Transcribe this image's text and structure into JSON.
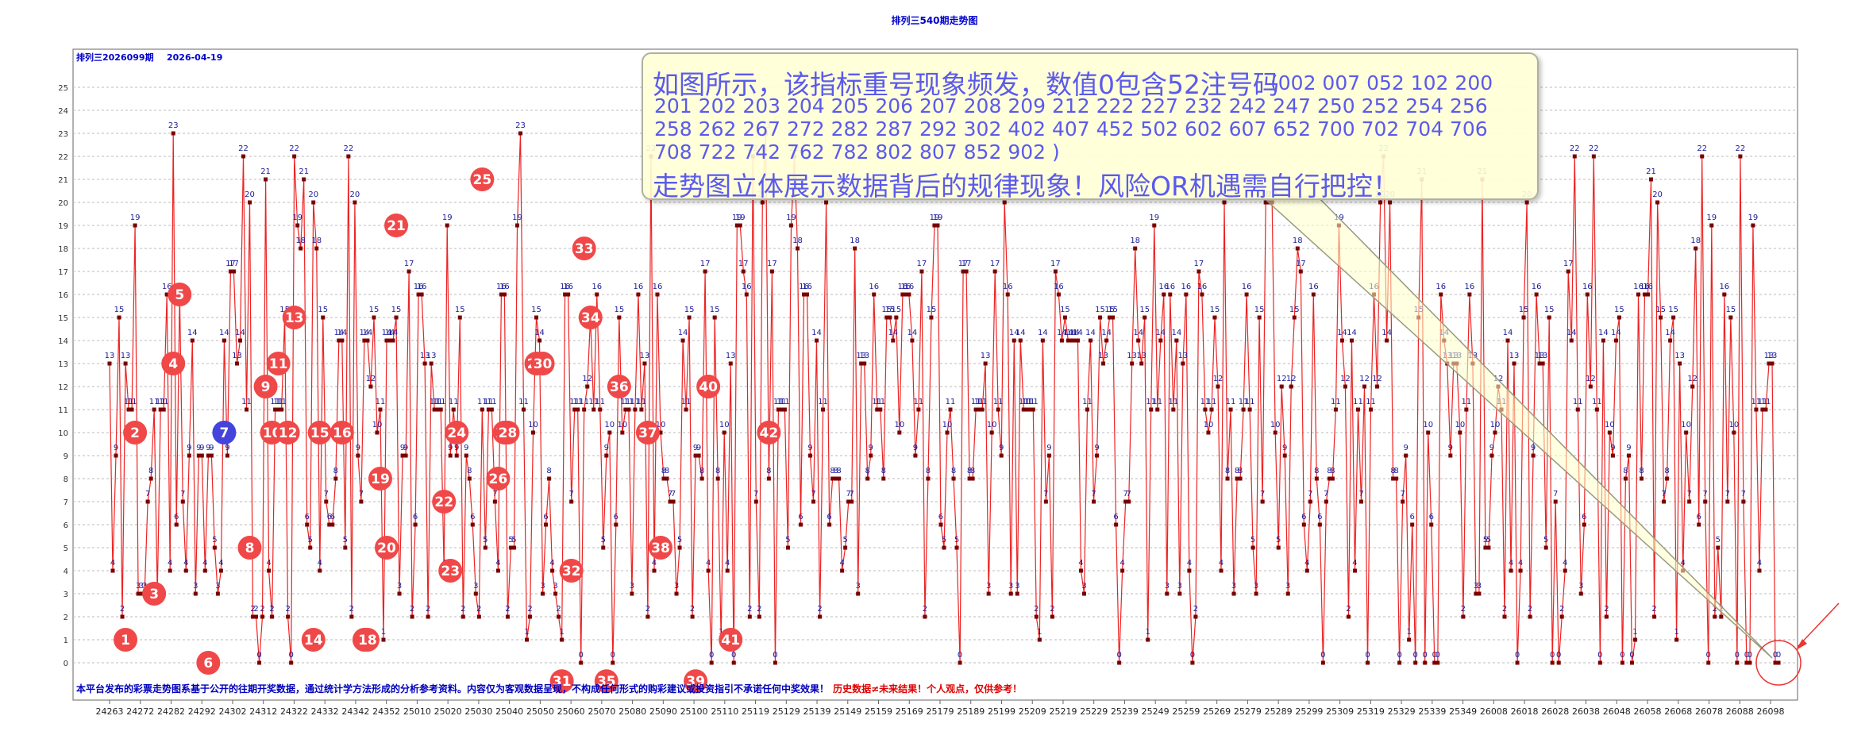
{
  "chart_data": {
    "type": "line",
    "title": "排列三540期走势图",
    "subtitle": "排列三2026099期",
    "date": "2026-04-19",
    "ylim": [
      0,
      25
    ],
    "y_ticks": [
      "0",
      "1",
      "2",
      "3",
      "4",
      "5",
      "6",
      "7",
      "8",
      "9",
      "10",
      "11",
      "12",
      "13",
      "14",
      "15",
      "16",
      "17",
      "18",
      "19",
      "20",
      "21",
      "22",
      "23",
      "24",
      "25"
    ],
    "x_ticks": [
      "24263",
      "24272",
      "24282",
      "24292",
      "24302",
      "24312",
      "24322",
      "24332",
      "24342",
      "24352",
      "25010",
      "25020",
      "25030",
      "25040",
      "25050",
      "25060",
      "25070",
      "25080",
      "25090",
      "25100",
      "25110",
      "25119",
      "25129",
      "25139",
      "25149",
      "25159",
      "25169",
      "25179",
      "25189",
      "25199",
      "25209",
      "25219",
      "25229",
      "25239",
      "25249",
      "25259",
      "25269",
      "25279",
      "25289",
      "25299",
      "25309",
      "25319",
      "25329",
      "25339",
      "25349",
      "26008",
      "26018",
      "26028",
      "26038",
      "26048",
      "26058",
      "26068",
      "26078",
      "26088",
      "26098"
    ],
    "grid": true,
    "series": [
      {
        "color": "#ee2222",
        "values": [
          13,
          4,
          9,
          15,
          2,
          13,
          11,
          11,
          19,
          3,
          3,
          3,
          7,
          8,
          11,
          3,
          11,
          11,
          16,
          4,
          23,
          6,
          16,
          7,
          4,
          9,
          14,
          3,
          9,
          9,
          4,
          9,
          9,
          5,
          3,
          4,
          14,
          9,
          17,
          17,
          13,
          14,
          22,
          11,
          20,
          2,
          2,
          0,
          2,
          21,
          4,
          2,
          11,
          11,
          11,
          15,
          2,
          0,
          22,
          19,
          18,
          21,
          6,
          5,
          20,
          18,
          4,
          15,
          7,
          6,
          6,
          8,
          14,
          14,
          5,
          22,
          2,
          20,
          9,
          7,
          14,
          14,
          12,
          15,
          10,
          11,
          1,
          14,
          14,
          14,
          15,
          3,
          9,
          9,
          17,
          2,
          6,
          16,
          16,
          13,
          2,
          13,
          11,
          11,
          11,
          4,
          19,
          9,
          11,
          9,
          15,
          2,
          9,
          8,
          6,
          3,
          2,
          11,
          5,
          11,
          11,
          7,
          4,
          16,
          16,
          2,
          5,
          5,
          19,
          23,
          11,
          1,
          2,
          10,
          15,
          14,
          3,
          6,
          8,
          4,
          3,
          2,
          1,
          16,
          16,
          7,
          11,
          11,
          0,
          11,
          12,
          15,
          11,
          16,
          11,
          5,
          9,
          10,
          0,
          6,
          15,
          10,
          11,
          11,
          3,
          11,
          16,
          11,
          13,
          2,
          22,
          4,
          16,
          10,
          8,
          8,
          7,
          7,
          3,
          5,
          14,
          11,
          15,
          2,
          9,
          9,
          8,
          17,
          4,
          0,
          15,
          8,
          1,
          10,
          4,
          13,
          0,
          19,
          19,
          17,
          16,
          2,
          22,
          7,
          2,
          20,
          23,
          8,
          17,
          0,
          11,
          11,
          11,
          5,
          19,
          22,
          18,
          6,
          16,
          16,
          9,
          7,
          14,
          2,
          11,
          20,
          6,
          8,
          8,
          8,
          4,
          5,
          7,
          7,
          18,
          3,
          13,
          13,
          8,
          9,
          16,
          11,
          11,
          8,
          15,
          15,
          14,
          15,
          10,
          16,
          16,
          16,
          14,
          9,
          11,
          17,
          2,
          8,
          15,
          19,
          19,
          6,
          5,
          10,
          11,
          8,
          5,
          0,
          17,
          17,
          8,
          8,
          11,
          11,
          11,
          13,
          3,
          10,
          17,
          11,
          9,
          20,
          16,
          3,
          14,
          3,
          14,
          11,
          11,
          11,
          11,
          2,
          1,
          14,
          7,
          9,
          2,
          17,
          16,
          14,
          15,
          14,
          14,
          14,
          14,
          4,
          3,
          11,
          14,
          7,
          9,
          15,
          13,
          14,
          15,
          15,
          6,
          0,
          4,
          7,
          7,
          13,
          18,
          14,
          13,
          15,
          1,
          11,
          19,
          11,
          14,
          16,
          3,
          16,
          11,
          14,
          3,
          13,
          16,
          4,
          0,
          2,
          17,
          16,
          11,
          10,
          11,
          15,
          12,
          4,
          20,
          8,
          11,
          3,
          8,
          8,
          11,
          16,
          11,
          5,
          3,
          15,
          7,
          20,
          20,
          20,
          10,
          5,
          12,
          9,
          3,
          12,
          15,
          18,
          17,
          6,
          4,
          7,
          16,
          8,
          6,
          0,
          7,
          8,
          8,
          11,
          19,
          14,
          12,
          2,
          14,
          4,
          11,
          7,
          12,
          0,
          11,
          16,
          12,
          20,
          22,
          14,
          20,
          8,
          8,
          0,
          7,
          9,
          1,
          6,
          0,
          15,
          21,
          0,
          10,
          6,
          0,
          0,
          16,
          14,
          13,
          9,
          13,
          13,
          10,
          2,
          11,
          16,
          13,
          3,
          3,
          21,
          5,
          5,
          9,
          10,
          12,
          11,
          2,
          14,
          4,
          13,
          0,
          4,
          15,
          20,
          2,
          9,
          16,
          13,
          13,
          5,
          15,
          0,
          7,
          0,
          2,
          4,
          17,
          14,
          22,
          11,
          3,
          6,
          16,
          12,
          22,
          11,
          0,
          14,
          2,
          10,
          9,
          14,
          15,
          0,
          8,
          9,
          0,
          1,
          16,
          8,
          16,
          16,
          21,
          2,
          20,
          15,
          7,
          8,
          14,
          15,
          1,
          13,
          4,
          10,
          7,
          12,
          18,
          6,
          22,
          7,
          0,
          19,
          2,
          5,
          2,
          16,
          7,
          15,
          10,
          0,
          22,
          7,
          0,
          0,
          19,
          11,
          4,
          11,
          11,
          13,
          13,
          0,
          0
        ]
      }
    ],
    "circle_labels": [
      {
        "n": "1",
        "i": 5,
        "y": 1
      },
      {
        "n": "2",
        "i": 8,
        "y": 10
      },
      {
        "n": "3",
        "i": 14,
        "y": 3
      },
      {
        "n": "4",
        "i": 20,
        "y": 13
      },
      {
        "n": "5",
        "i": 22,
        "y": 16
      },
      {
        "n": "6",
        "i": 31,
        "y": 0
      },
      {
        "n": "7",
        "i": 36,
        "y": 10,
        "color": "#4444dd"
      },
      {
        "n": "8",
        "i": 44,
        "y": 5
      },
      {
        "n": "9",
        "i": 49,
        "y": 12
      },
      {
        "n": "10",
        "i": 51,
        "y": 10
      },
      {
        "n": "11",
        "i": 53,
        "y": 13
      },
      {
        "n": "12",
        "i": 56,
        "y": 10
      },
      {
        "n": "13",
        "i": 58,
        "y": 15
      },
      {
        "n": "14",
        "i": 64,
        "y": 1
      },
      {
        "n": "15",
        "i": 66,
        "y": 10
      },
      {
        "n": "16",
        "i": 73,
        "y": 10
      },
      {
        "n": "17",
        "i": 80,
        "y": 1
      },
      {
        "n": "18",
        "i": 81,
        "y": 1
      },
      {
        "n": "19",
        "i": 85,
        "y": 8
      },
      {
        "n": "20",
        "i": 87,
        "y": 5
      },
      {
        "n": "21",
        "i": 90,
        "y": 19
      },
      {
        "n": "22",
        "i": 105,
        "y": 7
      },
      {
        "n": "23",
        "i": 107,
        "y": 4
      },
      {
        "n": "24",
        "i": 109,
        "y": 10
      },
      {
        "n": "25",
        "i": 117,
        "y": 21
      },
      {
        "n": "26",
        "i": 122,
        "y": 8
      },
      {
        "n": "27",
        "i": 124,
        "y": 10
      },
      {
        "n": "28",
        "i": 125,
        "y": 10
      },
      {
        "n": "29",
        "i": 134,
        "y": 13
      },
      {
        "n": "30",
        "i": 136,
        "y": 13
      },
      {
        "n": "31",
        "i": 142,
        "y": -0.8
      },
      {
        "n": "32",
        "i": 145,
        "y": 4
      },
      {
        "n": "33",
        "i": 149,
        "y": 18
      },
      {
        "n": "34",
        "i": 151,
        "y": 15
      },
      {
        "n": "35",
        "i": 156,
        "y": -0.8
      },
      {
        "n": "36",
        "i": 160,
        "y": 12
      },
      {
        "n": "37",
        "i": 169,
        "y": 10
      },
      {
        "n": "38",
        "i": 173,
        "y": 5
      },
      {
        "n": "39",
        "i": 184,
        "y": -0.8
      },
      {
        "n": "40",
        "i": 188,
        "y": 12
      },
      {
        "n": "41",
        "i": 195,
        "y": 1
      },
      {
        "n": "42",
        "i": 207,
        "y": 10
      }
    ]
  },
  "note": {
    "line1": "如图所示，该指标重号现象频发，数值0包含52注号码",
    "codes": "(002  007  052  102  200  201  202  203  204  205  206  207  208  209  212  222  227  232  242  247  250  252  254  256  258  262  267  272  282  287  292  302  402  407  452  502  602  607  652  700  702  704  706  708  722  742  762  782  802  807  852  902  )",
    "line2": "走势图立体展示数据背后的规律现象！风险OR机遇需自行把控！"
  },
  "footer": {
    "part1": "本平台发布的彩票走势图系基于公开的往期开奖数据，通过统计学方法形成的分析参考资料。内容仅为客观数据呈现，不构成任何形式的购彩建议或投资指引不承诺任何中奖效果！",
    "part2": "历史数据≠未来结果！个人观点，仅供参考！"
  }
}
